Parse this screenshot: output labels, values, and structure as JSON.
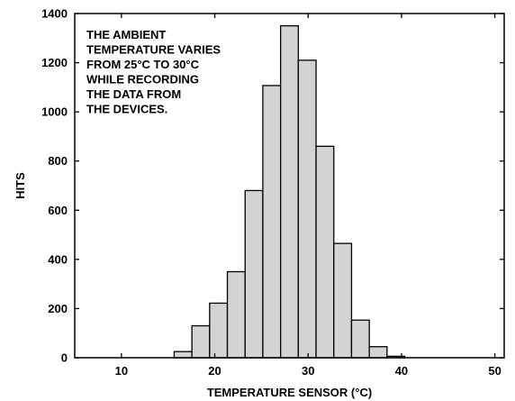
{
  "chart_data": {
    "type": "bar",
    "xlabel": "TEMPERATURE SENSOR  (°C)",
    "ylabel": "HITS",
    "xlim": [
      5,
      51
    ],
    "ylim": [
      0,
      1400
    ],
    "xticks": [
      "10",
      "20",
      "30",
      "40",
      "50"
    ],
    "xtick_values": [
      10,
      20,
      30,
      40,
      50
    ],
    "yticks": [
      "0",
      "200",
      "400",
      "600",
      "800",
      "1000",
      "1200",
      "1400"
    ],
    "ytick_values": [
      0,
      200,
      400,
      600,
      800,
      1000,
      1200,
      1400
    ],
    "bin_width": 1.9,
    "bins": [
      {
        "x": 16.6,
        "value": 25
      },
      {
        "x": 18.5,
        "value": 130
      },
      {
        "x": 20.4,
        "value": 222
      },
      {
        "x": 22.3,
        "value": 350
      },
      {
        "x": 24.2,
        "value": 680
      },
      {
        "x": 26.1,
        "value": 1107
      },
      {
        "x": 28.0,
        "value": 1350
      },
      {
        "x": 29.9,
        "value": 1210
      },
      {
        "x": 31.8,
        "value": 860
      },
      {
        "x": 33.7,
        "value": 465
      },
      {
        "x": 35.6,
        "value": 153
      },
      {
        "x": 37.5,
        "value": 45
      },
      {
        "x": 39.4,
        "value": 6
      }
    ],
    "annotation": [
      "THE AMBIENT",
      "TEMPERATURE VARIES",
      "FROM 25°C TO 30°C",
      "WHILE RECORDING",
      "THE DATA FROM",
      "THE DEVICES."
    ],
    "grid": false,
    "legend": "none",
    "bar_color": "#d3d3d3",
    "edge_color": "#000000"
  }
}
